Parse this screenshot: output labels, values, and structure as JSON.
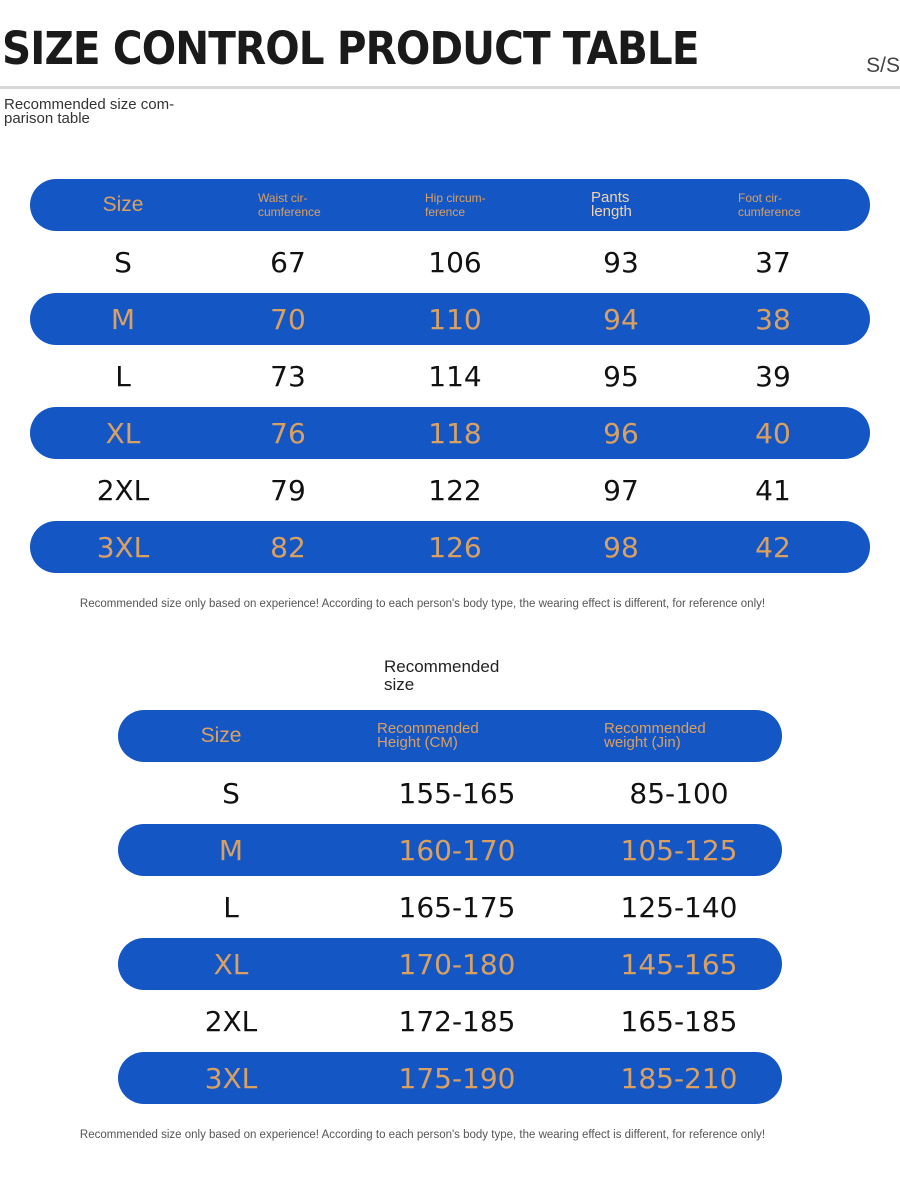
{
  "header": {
    "title": "SIZE CONTROL PRODUCT TABLE",
    "code": "S/S"
  },
  "table1": {
    "subtitle": "Recommended size com-parison table",
    "headers": [
      "Size",
      "Waist cir-cumference",
      "Hip circum-ference",
      "Pants length",
      "Foot cir-cumference"
    ],
    "rows": [
      [
        "S",
        "67",
        "106",
        "93",
        "37"
      ],
      [
        "M",
        "70",
        "110",
        "94",
        "38"
      ],
      [
        "L",
        "73",
        "114",
        "95",
        "39"
      ],
      [
        "XL",
        "76",
        "118",
        "96",
        "40"
      ],
      [
        "2XL",
        "79",
        "122",
        "97",
        "41"
      ],
      [
        "3XL",
        "82",
        "126",
        "98",
        "42"
      ]
    ],
    "note": "Recommended size only based on experience! According to each person's body type, the wearing effect is different, for reference only!"
  },
  "table2": {
    "subtitle": "Recommended size",
    "headers": [
      "Size",
      "Recommended Height (CM)",
      "Recommended weight (Jin)"
    ],
    "rows": [
      [
        "S",
        "155-165",
        "85-100"
      ],
      [
        "M",
        "160-170",
        "105-125"
      ],
      [
        "L",
        "165-175",
        "125-140"
      ],
      [
        "XL",
        "170-180",
        "145-165"
      ],
      [
        "2XL",
        "172-185",
        "165-185"
      ],
      [
        "3XL",
        "175-190",
        "185-210"
      ]
    ],
    "note": "Recommended size only based on experience! According to each person's body type, the wearing effect is different, for reference only!"
  },
  "colors": {
    "band_blue": "#1457c4",
    "band_text": "#d9a062",
    "header_text": "#c9a38a"
  }
}
